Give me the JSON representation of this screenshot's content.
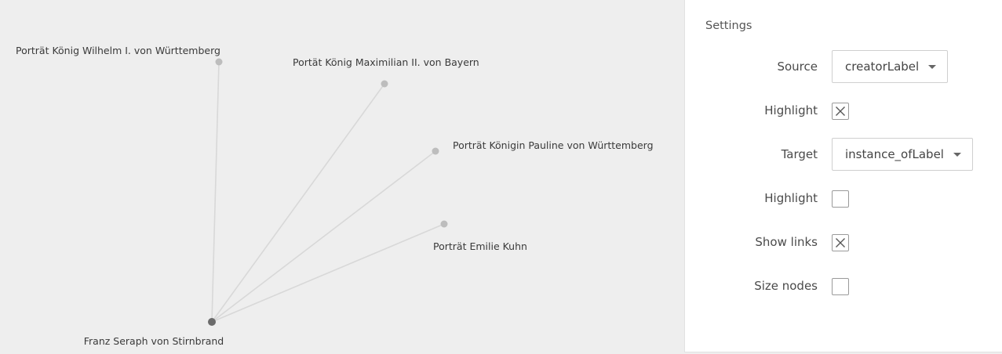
{
  "graph": {
    "center_node": {
      "label": "Franz Seraph von Stirnbrand"
    },
    "nodes": [
      {
        "label": "Porträt König Wilhelm I. von Württemberg"
      },
      {
        "label": "Portät König Maximilian II. von Bayern"
      },
      {
        "label": "Porträt Königin Pauline von Württemberg"
      },
      {
        "label": "Porträt Emilie Kuhn"
      }
    ],
    "colors": {
      "center": "#6b6b6b",
      "node": "#bdbdbd",
      "link": "#d8d8d8"
    }
  },
  "settings": {
    "title": "Settings",
    "source": {
      "label": "Source",
      "value": "creatorLabel"
    },
    "source_highlight": {
      "label": "Highlight",
      "checked": true
    },
    "target": {
      "label": "Target",
      "value": "instance_ofLabel"
    },
    "target_highlight": {
      "label": "Highlight",
      "checked": false
    },
    "show_links": {
      "label": "Show links",
      "checked": true
    },
    "size_nodes": {
      "label": "Size nodes",
      "checked": false
    }
  }
}
